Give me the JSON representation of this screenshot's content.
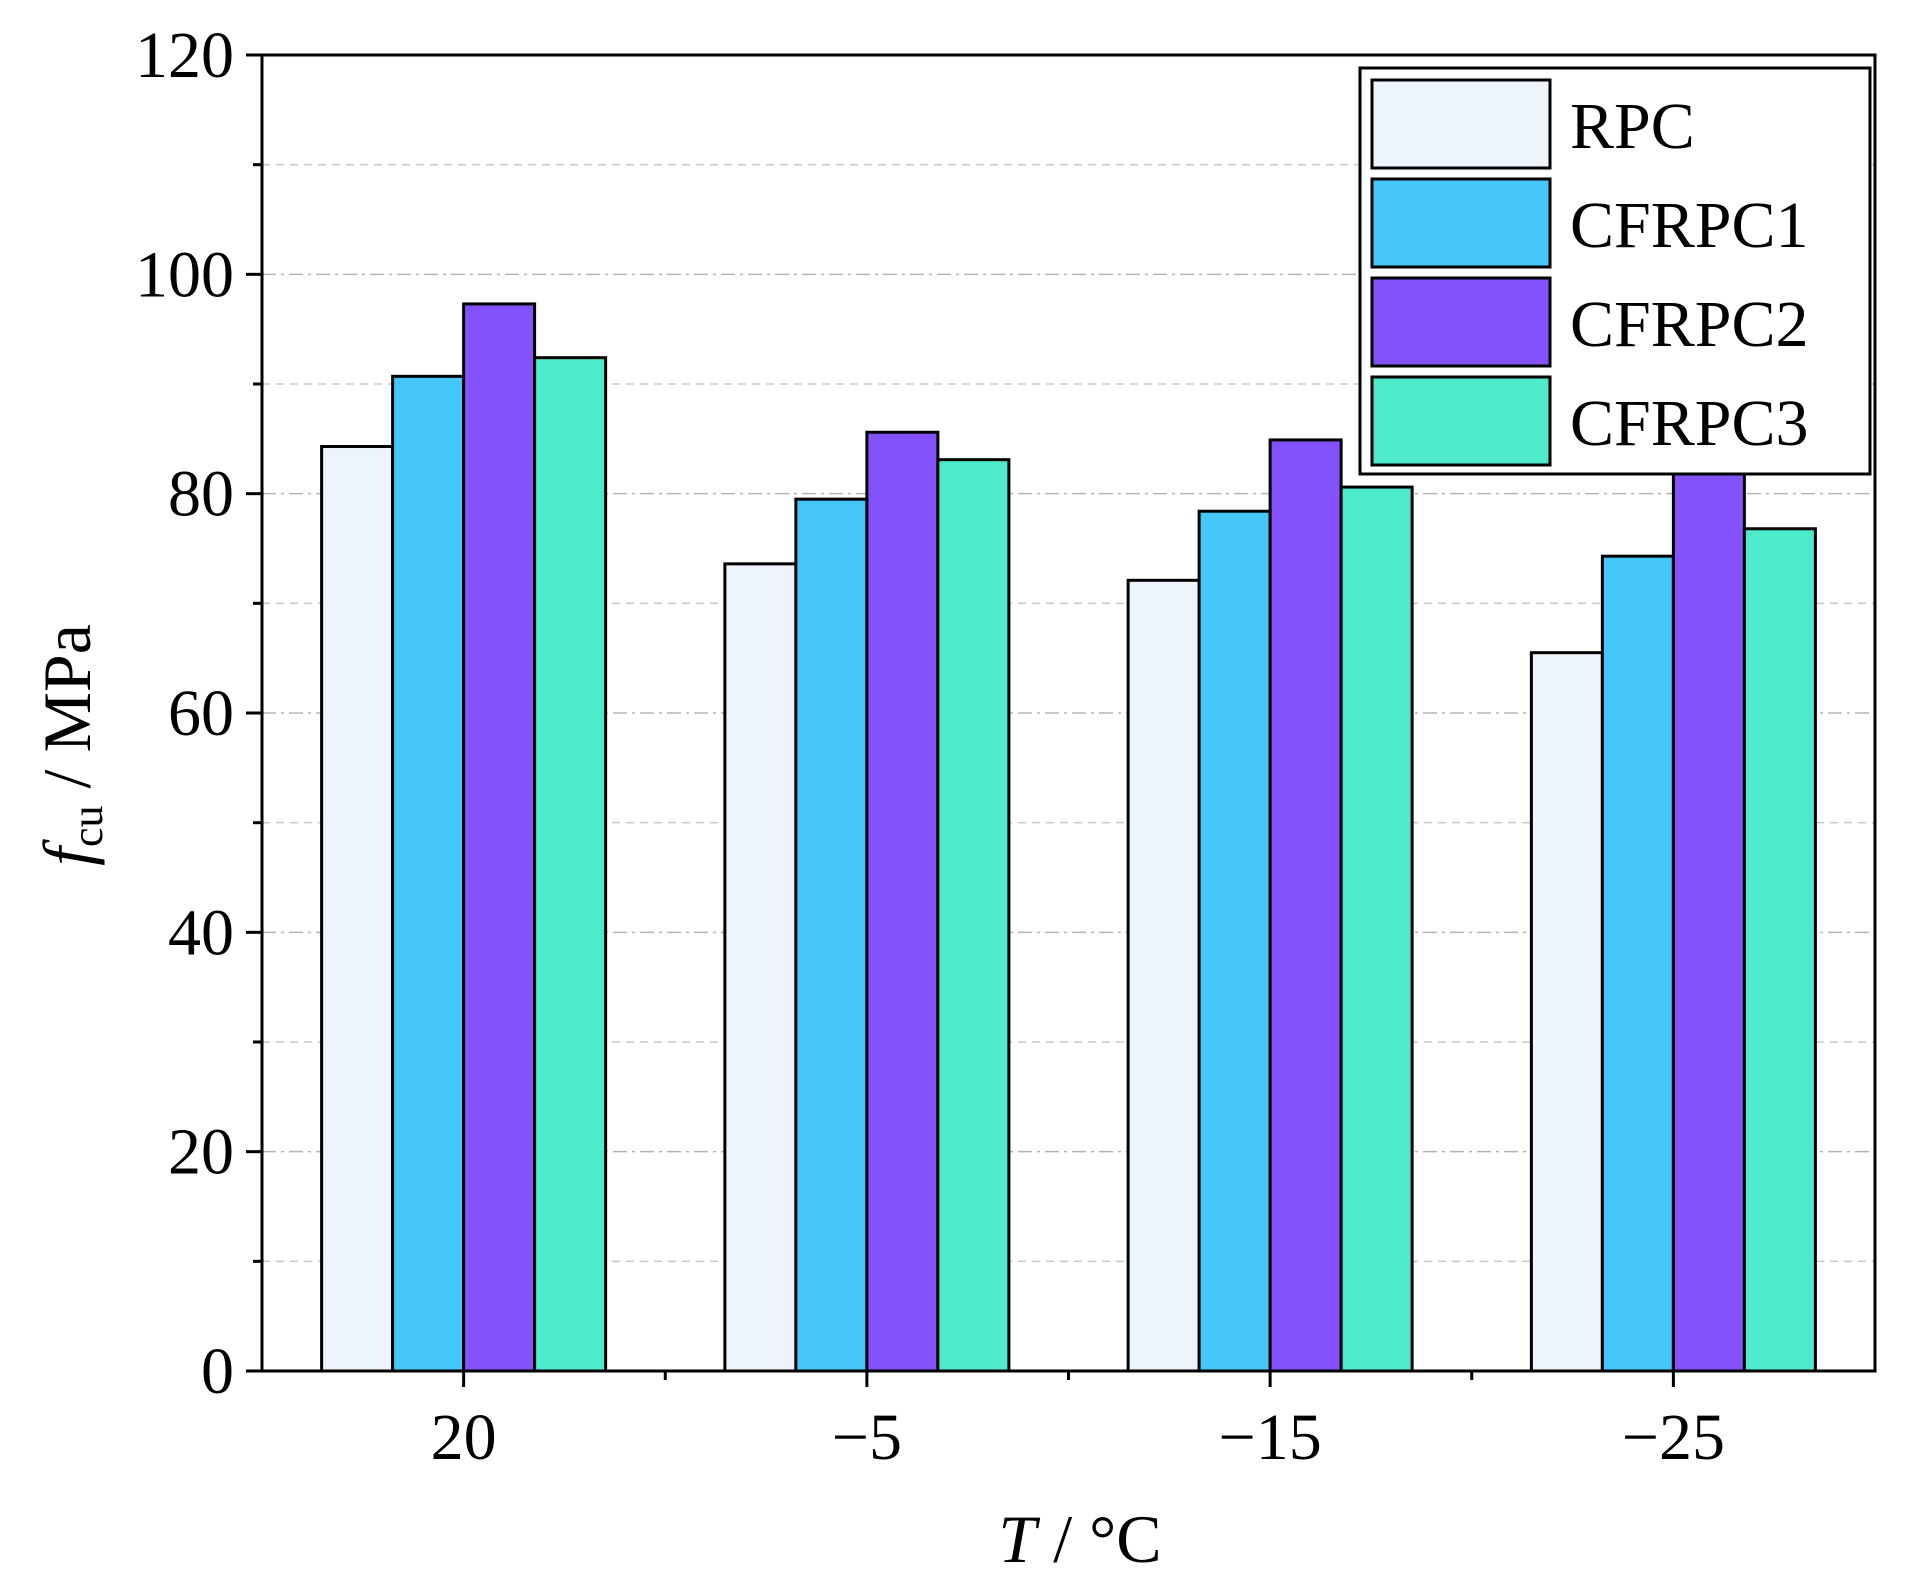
{
  "chart_data": {
    "type": "bar",
    "title": "",
    "xlabel_italic": "T",
    "xlabel_rest": " / °C",
    "ylabel_italic": "f",
    "ylabel_sub": "cu",
    "ylabel_rest": " / MPa",
    "categories": [
      "20",
      "−5",
      "−15",
      "−25"
    ],
    "series": [
      {
        "name": "RPC",
        "color": "#EEF4FC",
        "values": [
          84.3,
          73.6,
          72.1,
          65.5
        ]
      },
      {
        "name": "CFRPC1",
        "color": "#45C7FA",
        "values": [
          90.7,
          79.5,
          78.4,
          74.3
        ]
      },
      {
        "name": "CFRPC2",
        "color": "#8452FD",
        "values": [
          97.3,
          85.6,
          84.9,
          84.2
        ]
      },
      {
        "name": "CFRPC3",
        "color": "#4DEBCB",
        "values": [
          92.4,
          83.1,
          80.6,
          76.8
        ]
      }
    ],
    "ylim": [
      0,
      120
    ],
    "yticks": [
      0,
      20,
      40,
      60,
      80,
      100,
      120
    ],
    "ytick_labels": [
      "0",
      "20",
      "40",
      "60",
      "80",
      "100",
      "120"
    ],
    "minor_gridlines": [
      10,
      30,
      50,
      70,
      90,
      110
    ],
    "grid": true,
    "legend_position": "top-right"
  }
}
